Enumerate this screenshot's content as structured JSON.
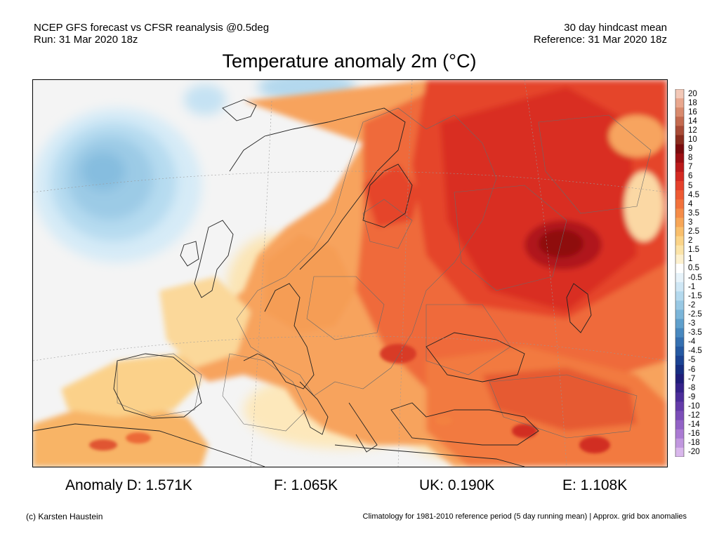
{
  "header": {
    "left_line1": "NCEP GFS forecast vs CFSR reanalysis @0.5deg",
    "left_line2": "Run: 31 Mar 2020 18z",
    "right_line1": "30 day hindcast mean",
    "right_line2": "Reference: 31 Mar 2020 18z"
  },
  "title": "Temperature anomaly 2m (°C)",
  "colorbar": {
    "labels": [
      "20",
      "18",
      "16",
      "14",
      "12",
      "10",
      "9",
      "8",
      "7",
      "6",
      "5",
      "4.5",
      "4",
      "3.5",
      "3",
      "2.5",
      "2",
      "1.5",
      "1",
      "0.5",
      "-0.5",
      "-1",
      "-1.5",
      "-2",
      "-2.5",
      "-3",
      "-3.5",
      "-4",
      "-4.5",
      "-5",
      "-6",
      "-7",
      "-8",
      "-9",
      "-10",
      "-12",
      "-14",
      "-16",
      "-18",
      "-20"
    ],
    "colors": [
      "#f3c8b7",
      "#e9a78e",
      "#d98a6d",
      "#c46a4f",
      "#a84b36",
      "#8a2c1d",
      "#7a0b0d",
      "#9c0f13",
      "#bb1a1b",
      "#d42a22",
      "#e5412c",
      "#ee5a33",
      "#f2723c",
      "#f58c48",
      "#f7a657",
      "#f9bf6c",
      "#fbd488",
      "#fce4a8",
      "#fdf1cf",
      "#ffffff",
      "#e7f3fa",
      "#cfe7f5",
      "#b4d9ee",
      "#98c8e4",
      "#7bb5d9",
      "#5f9fcc",
      "#4888bf",
      "#3570b1",
      "#2559a2",
      "#1b4393",
      "#162e82",
      "#1f1d7a",
      "#35228a",
      "#4c2d9a",
      "#643ba9",
      "#7b4db8",
      "#9262c6",
      "#aa7ad3",
      "#c197df",
      "#d9b7ec"
    ]
  },
  "stats": {
    "D": "Anomaly D: 1.571K",
    "F": "F: 1.065K",
    "UK": "UK: 0.190K",
    "E": "E: 1.108K"
  },
  "footer": {
    "left": "(c) Karsten Haustein",
    "right": "Climatology for 1981-2010 reference period (5 day running mean) | Approx. grid box anomalies"
  }
}
